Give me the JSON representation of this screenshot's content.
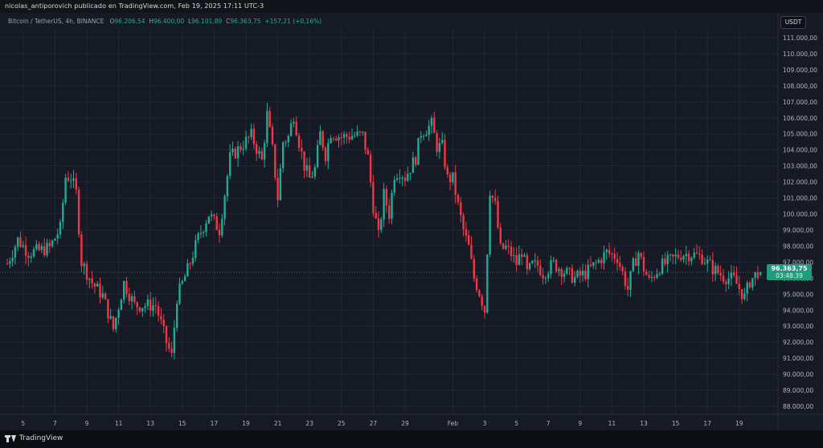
{
  "header": {
    "publisher_line": "nicolas_antiporovich publicado en TradingView.com, Feb 19, 2025 17:11 UTC-3"
  },
  "legend": {
    "symbol": "Bitcoin / TetherUS, 4h, BINANCE",
    "o_label": "O",
    "o_value": "96.206,54",
    "h_label": "H",
    "h_value": "96.400,00",
    "l_label": "L",
    "l_value": "96.101,89",
    "c_label": "C",
    "c_value": "96.363,75",
    "change": "+157,21 (+0,16%)"
  },
  "currency_button": "USDT",
  "last_price": {
    "price": "96.363,75",
    "countdown": "03:48:39"
  },
  "footer": {
    "brand": "TradingView"
  },
  "colors": {
    "up": "#22ab94",
    "down": "#f23645",
    "background": "#161a25",
    "grid": "#222736"
  },
  "chart_data": {
    "type": "candlestick",
    "symbol": "Bitcoin / TetherUS",
    "interval": "4h",
    "exchange": "BINANCE",
    "y_axis": {
      "range": [
        87500,
        111600
      ],
      "tick_labels": [
        "111.000,00",
        "110.000,00",
        "109.000,00",
        "108.000,00",
        "107.000,00",
        "106.000,00",
        "105.000,00",
        "104.000,00",
        "103.000,00",
        "102.000,00",
        "101.000,00",
        "100.000,00",
        "99.000,00",
        "98.000,00",
        "97.000,00",
        "96.000,00",
        "95.000,00",
        "94.000,00",
        "93.000,00",
        "92.000,00",
        "91.000,00",
        "90.000,00",
        "89.000,00",
        "88.000,00"
      ],
      "tick_values": [
        111000,
        110000,
        109000,
        108000,
        107000,
        106000,
        105000,
        104000,
        103000,
        102000,
        101000,
        100000,
        99000,
        98000,
        97000,
        96000,
        95000,
        94000,
        93000,
        92000,
        91000,
        90000,
        89000,
        88000
      ]
    },
    "x_axis": {
      "tick_labels": [
        "5",
        "7",
        "9",
        "11",
        "13",
        "15",
        "17",
        "19",
        "21",
        "23",
        "25",
        "27",
        "29",
        "Feb",
        "3",
        "5",
        "7",
        "9",
        "11",
        "13",
        "15",
        "17",
        "19"
      ],
      "tick_bar_index": [
        6,
        18,
        30,
        42,
        54,
        66,
        78,
        90,
        102,
        114,
        126,
        138,
        150,
        168,
        180,
        192,
        204,
        216,
        228,
        240,
        252,
        264,
        276
      ]
    },
    "grid": true,
    "close_path": [
      [
        0,
        96900
      ],
      [
        4,
        98400
      ],
      [
        8,
        97600
      ],
      [
        12,
        97700
      ],
      [
        16,
        97900
      ],
      [
        20,
        99100
      ],
      [
        22,
        102300
      ],
      [
        24,
        102300
      ],
      [
        26,
        101300
      ],
      [
        28,
        97000
      ],
      [
        32,
        95700
      ],
      [
        36,
        94900
      ],
      [
        40,
        92800
      ],
      [
        44,
        95700
      ],
      [
        48,
        94300
      ],
      [
        52,
        94300
      ],
      [
        56,
        94300
      ],
      [
        60,
        92000
      ],
      [
        62,
        91100
      ],
      [
        64,
        94800
      ],
      [
        68,
        96500
      ],
      [
        72,
        98500
      ],
      [
        76,
        100000
      ],
      [
        80,
        99000
      ],
      [
        84,
        103500
      ],
      [
        88,
        104200
      ],
      [
        92,
        104900
      ],
      [
        96,
        103300
      ],
      [
        98,
        106200
      ],
      [
        100,
        104000
      ],
      [
        102,
        101000
      ],
      [
        104,
        104500
      ],
      [
        106,
        104800
      ],
      [
        108,
        106200
      ],
      [
        110,
        104500
      ],
      [
        112,
        103000
      ],
      [
        114,
        102200
      ],
      [
        116,
        102800
      ],
      [
        118,
        105000
      ],
      [
        120,
        103700
      ],
      [
        122,
        105100
      ],
      [
        126,
        104800
      ],
      [
        130,
        104900
      ],
      [
        134,
        104900
      ],
      [
        136,
        103500
      ],
      [
        138,
        100500
      ],
      [
        140,
        98600
      ],
      [
        142,
        101200
      ],
      [
        144,
        100000
      ],
      [
        146,
        102500
      ],
      [
        148,
        102700
      ],
      [
        150,
        102300
      ],
      [
        154,
        103500
      ],
      [
        156,
        105100
      ],
      [
        158,
        105300
      ],
      [
        160,
        105600
      ],
      [
        162,
        104200
      ],
      [
        164,
        104200
      ],
      [
        166,
        102200
      ],
      [
        168,
        102200
      ],
      [
        170,
        100500
      ],
      [
        172,
        99000
      ],
      [
        174,
        97900
      ],
      [
        176,
        96000
      ],
      [
        178,
        95100
      ],
      [
        180,
        94000
      ],
      [
        182,
        101500
      ],
      [
        184,
        100500
      ],
      [
        186,
        97800
      ],
      [
        188,
        97900
      ],
      [
        190,
        97500
      ],
      [
        192,
        96900
      ],
      [
        194,
        97700
      ],
      [
        196,
        96300
      ],
      [
        198,
        96800
      ],
      [
        200,
        96800
      ],
      [
        202,
        96300
      ],
      [
        206,
        96900
      ],
      [
        210,
        96400
      ],
      [
        214,
        96000
      ],
      [
        218,
        96300
      ],
      [
        222,
        96900
      ],
      [
        226,
        97600
      ],
      [
        230,
        97300
      ],
      [
        234,
        95300
      ],
      [
        236,
        96800
      ],
      [
        238,
        97600
      ],
      [
        240,
        96600
      ],
      [
        242,
        95800
      ],
      [
        246,
        96700
      ],
      [
        250,
        97100
      ],
      [
        254,
        97500
      ],
      [
        258,
        97500
      ],
      [
        262,
        97300
      ],
      [
        266,
        96600
      ],
      [
        270,
        96100
      ],
      [
        274,
        95900
      ],
      [
        278,
        94800
      ],
      [
        280,
        95800
      ],
      [
        283,
        96400
      ],
      [
        284,
        96364
      ]
    ],
    "last": {
      "open": 96206.54,
      "high": 96400.0,
      "low": 96101.89,
      "close": 96363.75,
      "change": 157.21,
      "change_pct": 0.16
    }
  }
}
